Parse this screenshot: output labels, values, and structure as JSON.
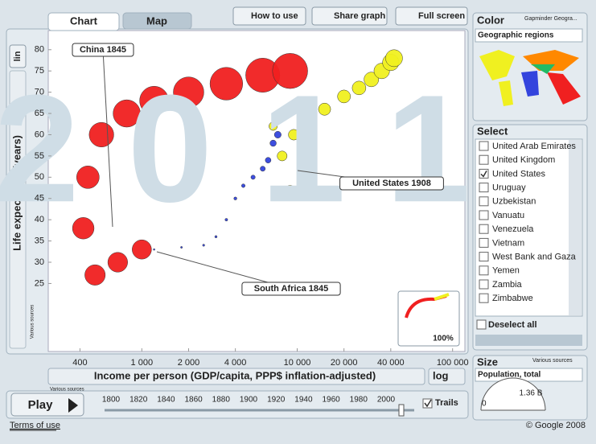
{
  "tabs": [
    "Chart",
    "Map"
  ],
  "buttons": [
    "How to use",
    "Share graph",
    "Full screen"
  ],
  "chart_data": {
    "type": "scatter",
    "xlabel": "Income per person (GDP/capita, PPP$ inflation-adjusted)",
    "ylabel": "Life expectancy (years)",
    "x_scale": "log",
    "y_scale": "lin",
    "xlim": [
      250,
      120000
    ],
    "ylim": [
      9,
      84.5
    ],
    "xticks": [
      400,
      {
        "value": 1000,
        "label": "1 000"
      },
      {
        "value": 2000,
        "label": "2 000"
      },
      {
        "value": 4000,
        "label": "4 000"
      },
      {
        "value": 10000,
        "label": "10 000"
      },
      {
        "value": 20000,
        "label": "20 000"
      },
      {
        "value": 40000,
        "label": "40 000"
      },
      {
        "value": 100000,
        "label": "100 000"
      }
    ],
    "yticks": [
      25,
      30,
      35,
      40,
      45,
      50,
      55,
      60,
      65,
      70,
      75,
      80
    ],
    "grid": false,
    "watermark": "2011",
    "annotations": [
      "China 1845",
      "United States 1908",
      "South Africa 1845"
    ],
    "series": [
      {
        "color": "#f02020",
        "x": [
          1000,
          700,
          500,
          420,
          450,
          550,
          800,
          1200,
          2000,
          3500,
          6000,
          9000
        ],
        "values": [
          33,
          30,
          27,
          38,
          50,
          60,
          65,
          68,
          70,
          72,
          74,
          75
        ],
        "sizes": [
          400,
          420,
          450,
          500,
          550,
          650,
          800,
          900,
          1000,
          1150,
          1250,
          1330
        ]
      },
      {
        "color": "#f0f020",
        "x": [
          7000,
          9000,
          8000,
          9500,
          12000,
          15000,
          20000,
          25000,
          30000,
          35000,
          40000,
          42000
        ],
        "values": [
          62,
          47,
          55,
          60,
          63,
          66,
          69,
          71,
          73,
          75,
          77,
          78
        ],
        "sizes": [
          76,
          92,
          105,
          123,
          140,
          160,
          180,
          200,
          230,
          260,
          290,
          310
        ]
      },
      {
        "color": "#3344dd",
        "x": [
          1200,
          1800,
          2500,
          3000,
          3500,
          4000,
          4500,
          5200,
          6000,
          6500,
          7000,
          7500
        ],
        "values": [
          33,
          33.5,
          34,
          36,
          40,
          45,
          48,
          50,
          52,
          54,
          58,
          60
        ],
        "sizes": [
          3,
          4,
          5,
          6,
          8,
          10,
          14,
          20,
          28,
          35,
          43,
          50
        ]
      }
    ]
  },
  "sources": "Various sources",
  "zoom": "100%",
  "color_panel": {
    "title": "Color",
    "source": "Gapminder Geogra...",
    "selection": "Geographic regions"
  },
  "select_panel": {
    "title": "Select",
    "countries": [
      {
        "name": "United Arab Emirates",
        "checked": false
      },
      {
        "name": "United Kingdom",
        "checked": false
      },
      {
        "name": "United States",
        "checked": true
      },
      {
        "name": "Uruguay",
        "checked": false
      },
      {
        "name": "Uzbekistan",
        "checked": false
      },
      {
        "name": "Vanuatu",
        "checked": false
      },
      {
        "name": "Venezuela",
        "checked": false
      },
      {
        "name": "Vietnam",
        "checked": false
      },
      {
        "name": "West Bank and Gaza",
        "checked": false
      },
      {
        "name": "Yemen",
        "checked": false
      },
      {
        "name": "Zambia",
        "checked": false
      },
      {
        "name": "Zimbabwe",
        "checked": false
      }
    ],
    "deselect": "Deselect all"
  },
  "size_panel": {
    "title": "Size",
    "source": "Various sources",
    "selection": "Population, total",
    "max": "1.36 B",
    "min": "0"
  },
  "player": {
    "play": "Play",
    "years": [
      "1800",
      "1820",
      "1840",
      "1860",
      "1880",
      "1900",
      "1920",
      "1940",
      "1960",
      "1980",
      "2000"
    ],
    "trails": "Trails"
  },
  "footer": {
    "terms": "Terms of use",
    "copyright": "© Google 2008"
  }
}
